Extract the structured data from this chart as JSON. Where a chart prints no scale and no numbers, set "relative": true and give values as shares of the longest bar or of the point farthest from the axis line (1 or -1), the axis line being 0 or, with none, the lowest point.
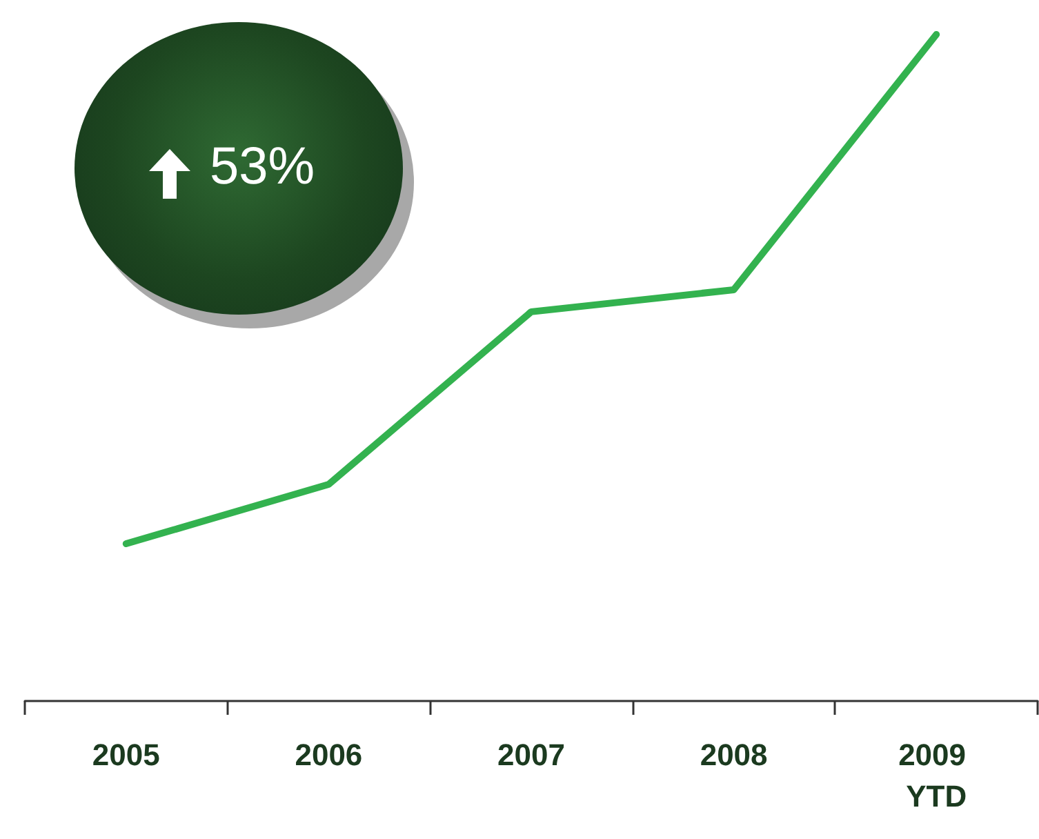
{
  "chart_data": {
    "type": "line",
    "relative": true,
    "marker": "none",
    "categories": [
      "2005",
      "2006",
      "2007",
      "2008",
      "2009 YTD"
    ],
    "values": [
      0.236,
      0.325,
      0.584,
      0.617,
      1
    ],
    "color": "#33b24f",
    "annotations": [
      "53%"
    ]
  }
}
